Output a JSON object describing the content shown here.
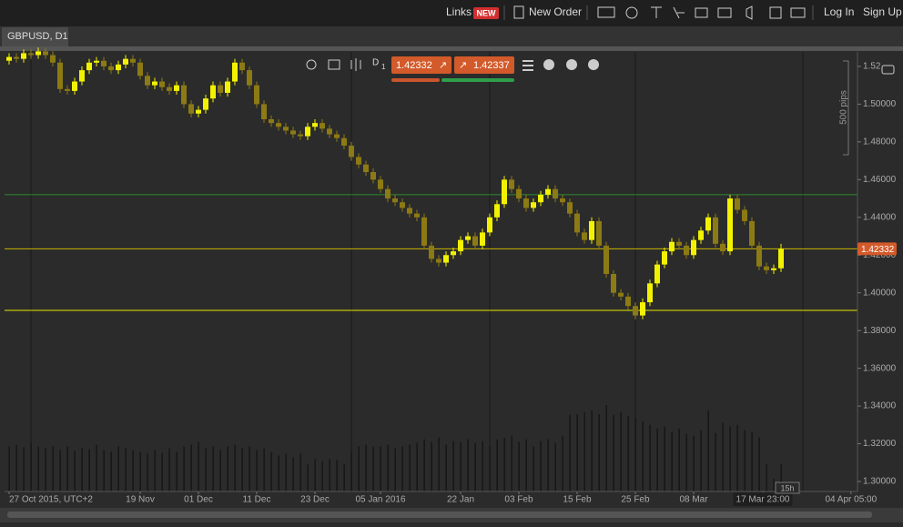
{
  "toolbar": {
    "links": "Links",
    "new_badge": "NEW",
    "new_order": "New Order",
    "log_in": "Log In",
    "sign_up": "Sign Up"
  },
  "tab": "GBPUSD, D1",
  "chart_toolbar": {
    "period": "D",
    "multiplier": "1",
    "sell": "1.42332",
    "buy": "1.42337"
  },
  "chart_data": {
    "type": "candlestick",
    "open": [
      1.523,
      1.525,
      1.524,
      1.527,
      1.526,
      1.528,
      1.526,
      1.522,
      1.508,
      1.507,
      1.512,
      1.518,
      1.522,
      1.523,
      1.52,
      1.518,
      1.521,
      1.524,
      1.522,
      1.515,
      1.51,
      1.512,
      1.509,
      1.507,
      1.51,
      1.5,
      1.495,
      1.497,
      1.503,
      1.51,
      1.506,
      1.512,
      1.522,
      1.518,
      1.51,
      1.5,
      1.492,
      1.49,
      1.488,
      1.486,
      1.484,
      1.483,
      1.488,
      1.49,
      1.487,
      1.484,
      1.482,
      1.478,
      1.472,
      1.468,
      1.464,
      1.46,
      1.455,
      1.45,
      1.448,
      1.445,
      1.442,
      1.44,
      1.425,
      1.418,
      1.416,
      1.42,
      1.422,
      1.428,
      1.43,
      1.425,
      1.432,
      1.44,
      1.447,
      1.46,
      1.455,
      1.45,
      1.445,
      1.448,
      1.452,
      1.455,
      1.45,
      1.448,
      1.442,
      1.432,
      1.428,
      1.438,
      1.425,
      1.41,
      1.4,
      1.398,
      1.393,
      1.388,
      1.395,
      1.405,
      1.415,
      1.422,
      1.427,
      1.425,
      1.42,
      1.428,
      1.433,
      1.44,
      1.426,
      1.422,
      1.45,
      1.444,
      1.438,
      1.425,
      1.414,
      1.412,
      1.413
    ],
    "high": [
      1.527,
      1.527,
      1.529,
      1.529,
      1.53,
      1.53,
      1.528,
      1.524,
      1.51,
      1.514,
      1.52,
      1.524,
      1.525,
      1.525,
      1.522,
      1.523,
      1.526,
      1.526,
      1.524,
      1.517,
      1.514,
      1.514,
      1.511,
      1.512,
      1.512,
      1.502,
      1.499,
      1.505,
      1.512,
      1.512,
      1.514,
      1.524,
      1.524,
      1.52,
      1.512,
      1.502,
      1.494,
      1.492,
      1.49,
      1.488,
      1.486,
      1.49,
      1.492,
      1.492,
      1.489,
      1.486,
      1.484,
      1.48,
      1.474,
      1.47,
      1.466,
      1.462,
      1.457,
      1.452,
      1.45,
      1.447,
      1.444,
      1.442,
      1.427,
      1.42,
      1.422,
      1.424,
      1.43,
      1.432,
      1.432,
      1.434,
      1.442,
      1.449,
      1.462,
      1.462,
      1.457,
      1.452,
      1.45,
      1.454,
      1.457,
      1.457,
      1.452,
      1.45,
      1.444,
      1.434,
      1.44,
      1.44,
      1.427,
      1.412,
      1.402,
      1.4,
      1.395,
      1.397,
      1.407,
      1.417,
      1.424,
      1.429,
      1.429,
      1.427,
      1.43,
      1.435,
      1.442,
      1.442,
      1.428,
      1.452,
      1.452,
      1.446,
      1.44,
      1.427,
      1.416,
      1.415,
      1.426
    ],
    "low": [
      1.521,
      1.522,
      1.522,
      1.524,
      1.524,
      1.524,
      1.52,
      1.506,
      1.505,
      1.505,
      1.51,
      1.516,
      1.52,
      1.518,
      1.516,
      1.516,
      1.519,
      1.52,
      1.513,
      1.508,
      1.508,
      1.507,
      1.505,
      1.505,
      1.498,
      1.493,
      1.493,
      1.495,
      1.501,
      1.504,
      1.504,
      1.51,
      1.516,
      1.508,
      1.498,
      1.49,
      1.488,
      1.486,
      1.484,
      1.482,
      1.481,
      1.481,
      1.486,
      1.485,
      1.482,
      1.48,
      1.476,
      1.47,
      1.466,
      1.462,
      1.458,
      1.453,
      1.448,
      1.446,
      1.443,
      1.44,
      1.438,
      1.423,
      1.416,
      1.414,
      1.414,
      1.418,
      1.42,
      1.426,
      1.423,
      1.423,
      1.43,
      1.438,
      1.445,
      1.453,
      1.448,
      1.443,
      1.443,
      1.446,
      1.45,
      1.448,
      1.446,
      1.44,
      1.43,
      1.426,
      1.426,
      1.423,
      1.408,
      1.398,
      1.396,
      1.391,
      1.386,
      1.386,
      1.393,
      1.403,
      1.413,
      1.42,
      1.423,
      1.418,
      1.418,
      1.426,
      1.431,
      1.424,
      1.42,
      1.42,
      1.442,
      1.436,
      1.423,
      1.412,
      1.41,
      1.41,
      1.411
    ],
    "close": [
      1.525,
      1.524,
      1.527,
      1.526,
      1.528,
      1.526,
      1.522,
      1.508,
      1.507,
      1.512,
      1.518,
      1.522,
      1.523,
      1.52,
      1.518,
      1.521,
      1.524,
      1.522,
      1.515,
      1.51,
      1.512,
      1.509,
      1.507,
      1.51,
      1.5,
      1.495,
      1.497,
      1.503,
      1.51,
      1.506,
      1.512,
      1.522,
      1.518,
      1.51,
      1.5,
      1.492,
      1.49,
      1.488,
      1.486,
      1.484,
      1.483,
      1.488,
      1.49,
      1.487,
      1.484,
      1.482,
      1.478,
      1.472,
      1.468,
      1.464,
      1.46,
      1.455,
      1.45,
      1.448,
      1.445,
      1.442,
      1.44,
      1.425,
      1.418,
      1.416,
      1.42,
      1.422,
      1.428,
      1.43,
      1.425,
      1.432,
      1.44,
      1.447,
      1.46,
      1.455,
      1.45,
      1.445,
      1.448,
      1.452,
      1.455,
      1.45,
      1.448,
      1.442,
      1.432,
      1.428,
      1.438,
      1.425,
      1.41,
      1.4,
      1.398,
      1.393,
      1.388,
      1.395,
      1.405,
      1.415,
      1.422,
      1.427,
      1.425,
      1.42,
      1.428,
      1.433,
      1.44,
      1.426,
      1.422,
      1.45,
      1.444,
      1.438,
      1.425,
      1.414,
      1.412,
      1.413,
      1.42332
    ],
    "volume": [
      50,
      52,
      49,
      54,
      50,
      48,
      50,
      46,
      50,
      45,
      48,
      47,
      52,
      46,
      44,
      50,
      48,
      46,
      44,
      42,
      46,
      43,
      48,
      44,
      50,
      52,
      55,
      48,
      50,
      46,
      50,
      52,
      48,
      50,
      46,
      48,
      44,
      40,
      42,
      38,
      42,
      30,
      36,
      34,
      36,
      35,
      30,
      45,
      50,
      52,
      50,
      50,
      52,
      48,
      50,
      52,
      54,
      58,
      55,
      60,
      52,
      56,
      55,
      58,
      54,
      56,
      50,
      58,
      60,
      62,
      55,
      58,
      50,
      56,
      58,
      54,
      62,
      85,
      86,
      88,
      90,
      86,
      96,
      85,
      88,
      84,
      82,
      78,
      74,
      70,
      72,
      66,
      70,
      64,
      62,
      68,
      90,
      65,
      76,
      72,
      74,
      68,
      66,
      60,
      30,
      14,
      30
    ],
    "xlim": [
      -0.625,
      116.5
    ],
    "xticks": [
      {
        "value": 0,
        "label": "27 Oct 2015, UTC+2"
      },
      {
        "value": 18,
        "label": "19 Nov"
      },
      {
        "value": 26,
        "label": "01 Dec"
      },
      {
        "value": 34,
        "label": "11 Dec"
      },
      {
        "value": 42,
        "label": "23 Dec"
      },
      {
        "value": 51,
        "label": "05 Jan 2016"
      },
      {
        "value": 62,
        "label": "22 Jan"
      },
      {
        "value": 70,
        "label": "03 Feb"
      },
      {
        "value": 78,
        "label": "15 Feb"
      },
      {
        "value": 86,
        "label": "25 Feb"
      },
      {
        "value": 94,
        "label": "08 Mar"
      },
      {
        "value": 103.5,
        "label": "17 Mar 23:00"
      },
      {
        "value": 115.6,
        "label": "04 Apr 05:00"
      }
    ],
    "xgrid": [
      3,
      47,
      66,
      86,
      109
    ],
    "ylim": [
      1.2947,
      1.5277
    ],
    "yticks": [
      1.52,
      {
        "value": 1.5,
        "label": "1.50000"
      },
      {
        "value": 1.48,
        "label": "1.48000"
      },
      {
        "value": 1.46,
        "label": "1.46000"
      },
      {
        "value": 1.44,
        "label": "1.44000"
      },
      {
        "value": 1.42,
        "label": "1.42000"
      },
      {
        "value": 1.4,
        "label": "1.40000"
      },
      {
        "value": 1.38,
        "label": "1.38000"
      },
      {
        "value": 1.36,
        "label": "1.36000"
      },
      {
        "value": 1.34,
        "label": "1.34000"
      },
      {
        "value": 1.32,
        "label": "1.32000"
      },
      {
        "value": 1.3,
        "label": "1.30000"
      }
    ],
    "levels": [
      {
        "value": 1.452,
        "color": "#2e8b2e"
      },
      {
        "value": 1.42332,
        "color": "#c8b400"
      },
      {
        "value": 1.3907,
        "color": "#e6e600"
      }
    ],
    "current_price": {
      "value": 1.42332,
      "label": "1.42332"
    },
    "up_color": "#f2f200",
    "down_color": "#8c7a14",
    "volume_color": "#111111",
    "ruler_label": "500 pips",
    "countdown": "15h"
  }
}
